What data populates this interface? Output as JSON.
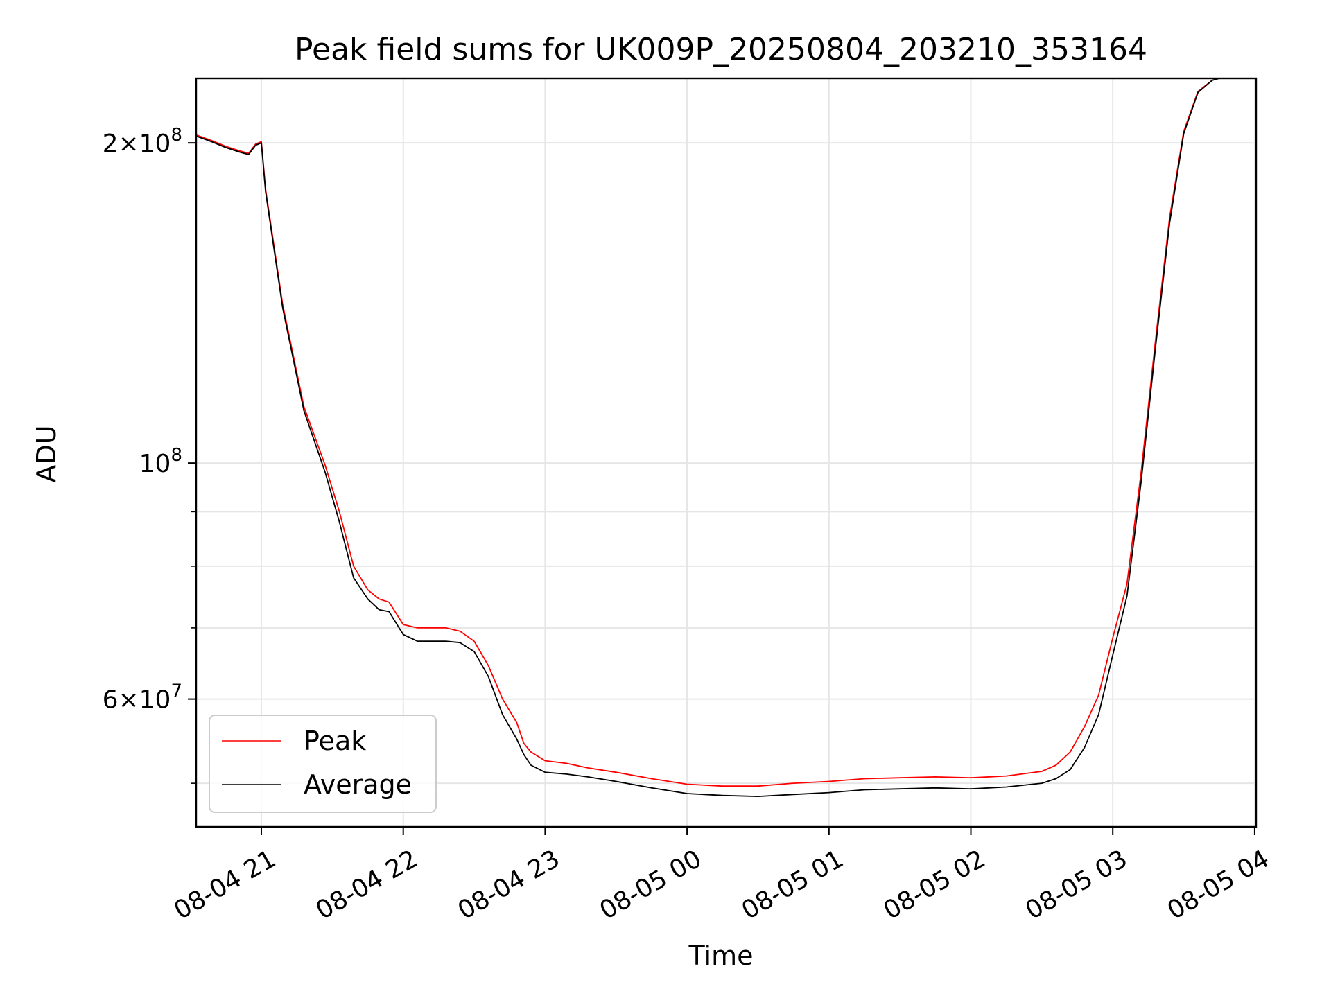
{
  "chart_data": {
    "type": "line",
    "title": "Peak field sums for UK009P_20250804_203210_353164",
    "xlabel": "Time",
    "ylabel": "ADU",
    "x_ticks": [
      "08-04 21",
      "08-04 22",
      "08-04 23",
      "08-05 00",
      "08-05 01",
      "08-05 02",
      "08-05 03",
      "08-05 04"
    ],
    "y_scale": "log",
    "ylim": [
      45500000,
      230000000
    ],
    "y_ticks": [
      {
        "value": 200000000,
        "mantissa": "2",
        "exponent": "8"
      },
      {
        "value": 100000000,
        "mantissa": "",
        "exponent": "8"
      },
      {
        "value": 60000000,
        "mantissa": "6",
        "exponent": "7"
      }
    ],
    "y_minor_gridlines": [
      50000000,
      70000000,
      80000000,
      90000000
    ],
    "grid": true,
    "legend_position": "lower left",
    "colors": {
      "Peak": "#ff0000",
      "Average": "#000000"
    },
    "x_hours": [
      -0.46,
      -0.35,
      -0.25,
      -0.15,
      -0.09,
      -0.04,
      0.0,
      0.03,
      0.15,
      0.3,
      0.45,
      0.55,
      0.65,
      0.75,
      0.83,
      0.9,
      1.0,
      1.1,
      1.2,
      1.3,
      1.4,
      1.5,
      1.6,
      1.7,
      1.8,
      1.85,
      1.9,
      2.0,
      2.15,
      2.3,
      2.5,
      2.75,
      3.0,
      3.25,
      3.5,
      3.75,
      4.0,
      4.25,
      4.5,
      4.75,
      5.0,
      5.25,
      5.5,
      5.6,
      5.7,
      5.8,
      5.9,
      6.0,
      6.1,
      6.2,
      6.3,
      6.4,
      6.5,
      6.6,
      6.7,
      6.75,
      6.8,
      6.85,
      6.9
    ],
    "series": [
      {
        "name": "Average",
        "values": [
          203000000,
          200500000,
          198000000,
          196000000,
          195000000,
          199000000,
          200000000,
          180000000,
          140000000,
          112000000,
          98000000,
          88000000,
          78000000,
          74500000,
          72800000,
          72500000,
          69000000,
          68000000,
          68000000,
          68000000,
          67800000,
          66500000,
          63000000,
          58000000,
          55000000,
          53200000,
          52000000,
          51200000,
          51000000,
          50700000,
          50200000,
          49500000,
          48900000,
          48700000,
          48600000,
          48800000,
          49000000,
          49300000,
          49400000,
          49500000,
          49400000,
          49600000,
          50000000,
          50500000,
          51500000,
          54000000,
          58000000,
          66000000,
          75000000,
          96000000,
          128000000,
          168000000,
          204000000,
          223000000,
          229000000,
          230000000,
          230000000,
          230000000,
          230000000
        ]
      },
      {
        "name": "Peak",
        "values": [
          203500000,
          201000000,
          198500000,
          196500000,
          195500000,
          199500000,
          200500000,
          181000000,
          141000000,
          113000000,
          99500000,
          90000000,
          80000000,
          76000000,
          74500000,
          74000000,
          70500000,
          70000000,
          70000000,
          70000000,
          69500000,
          68000000,
          64500000,
          60000000,
          57000000,
          54500000,
          53500000,
          52500000,
          52200000,
          51700000,
          51200000,
          50500000,
          49900000,
          49700000,
          49700000,
          50000000,
          50200000,
          50500000,
          50600000,
          50700000,
          50600000,
          50800000,
          51300000,
          52000000,
          53500000,
          56500000,
          60500000,
          68500000,
          77000000,
          98000000,
          130000000,
          170000000,
          205000000,
          223500000,
          229000000,
          230000000,
          230000000,
          230000000,
          230000000
        ]
      }
    ]
  }
}
